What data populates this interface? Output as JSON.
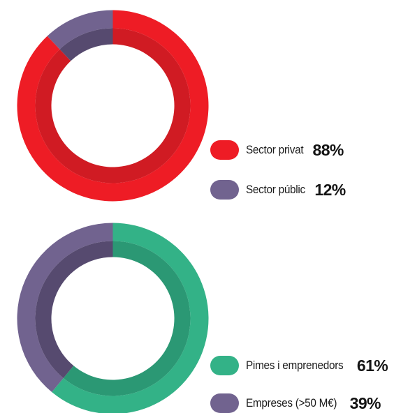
{
  "chart_data": [
    {
      "type": "pie",
      "variant": "donut",
      "series": [
        {
          "name": "Sector privat",
          "value": 88,
          "label": "88%",
          "color": "#ee1c25",
          "inner_color": "#d01b23"
        },
        {
          "name": "Sector públic",
          "value": 12,
          "label": "12%",
          "color": "#71638f",
          "inner_color": "#564a6f"
        }
      ],
      "legend_position": "right-bottom"
    },
    {
      "type": "pie",
      "variant": "donut",
      "series": [
        {
          "name": "Pimes i emprenedors",
          "value": 61,
          "label": "61%",
          "color": "#33b287",
          "inner_color": "#2b9874"
        },
        {
          "name": "Empreses (>50 M€)",
          "value": 39,
          "label": "39%",
          "color": "#71638f",
          "inner_color": "#564a6f"
        }
      ],
      "legend_position": "right-bottom"
    }
  ]
}
